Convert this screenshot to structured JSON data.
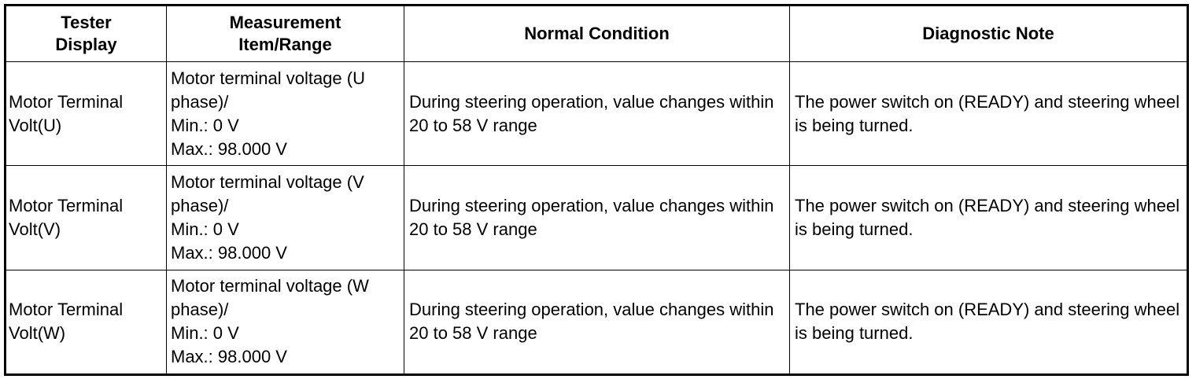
{
  "table": {
    "header": [
      "Tester Display",
      "Measurement Item/Range",
      "Normal Condition",
      "Diagnostic Note"
    ],
    "rows": [
      [
        [
          "Motor Terminal Volt(U)"
        ],
        [
          "Motor terminal voltage (U phase)/",
          "Min.: 0 V",
          "Max.: 98.000 V"
        ],
        [
          "During steering operation, value changes within 20 to 58 V range"
        ],
        [
          "The power switch on (READY) and steering wheel is being turned."
        ]
      ],
      [
        [
          "Motor Terminal Volt(V)"
        ],
        [
          "Motor terminal voltage (V phase)/",
          "Min.: 0 V",
          "Max.: 98.000 V"
        ],
        [
          "During steering operation, value changes within 20 to 58 V range"
        ],
        [
          "The power switch on (READY) and steering wheel is being turned."
        ]
      ],
      [
        [
          "Motor Terminal Volt(W)"
        ],
        [
          "Motor terminal voltage (W phase)/",
          "Min.: 0 V",
          "Max.: 98.000 V"
        ],
        [
          "During steering operation, value changes within 20 to 58 V range"
        ],
        [
          "The power switch on (READY) and steering wheel is being turned."
        ]
      ]
    ]
  }
}
